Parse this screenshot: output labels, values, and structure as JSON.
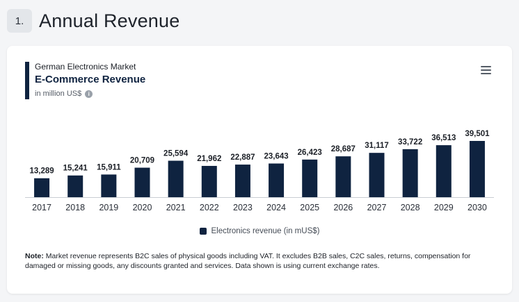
{
  "section": {
    "number": "1.",
    "title": "Annual Revenue"
  },
  "card": {
    "market": "German Electronics Market",
    "title": "E-Commerce Revenue",
    "unit": "in million US$"
  },
  "legend": {
    "label": "Electronics revenue (in mUS$)"
  },
  "note": {
    "label": "Note:",
    "text": " Market revenue represents B2C sales of physical goods including VAT. It excludes B2B sales, C2C sales, returns, compensation for damaged or missing goods, any discounts granted and services. Data shown is using current exchange rates."
  },
  "colors": {
    "bar": "#0f2340",
    "accent": "#0f2340"
  },
  "chart_data": {
    "type": "bar",
    "title": "E-Commerce Revenue",
    "categories": [
      "2017",
      "2018",
      "2019",
      "2020",
      "2021",
      "2022",
      "2023",
      "2024",
      "2025",
      "2026",
      "2027",
      "2028",
      "2029",
      "2030"
    ],
    "series": [
      {
        "name": "Electronics revenue (in mUS$)",
        "values": [
          13289,
          15241,
          15911,
          20709,
          25594,
          21962,
          22887,
          23643,
          26423,
          28687,
          31117,
          33722,
          36513,
          39501
        ],
        "labels": [
          "13,289",
          "15,241",
          "15,911",
          "20,709",
          "25,594",
          "21,962",
          "22,887",
          "23,643",
          "26,423",
          "28,687",
          "31,117",
          "33,722",
          "36,513",
          "39,501"
        ]
      }
    ],
    "ylabel": "in million US$",
    "grid": false,
    "legend_position": "bottom"
  }
}
